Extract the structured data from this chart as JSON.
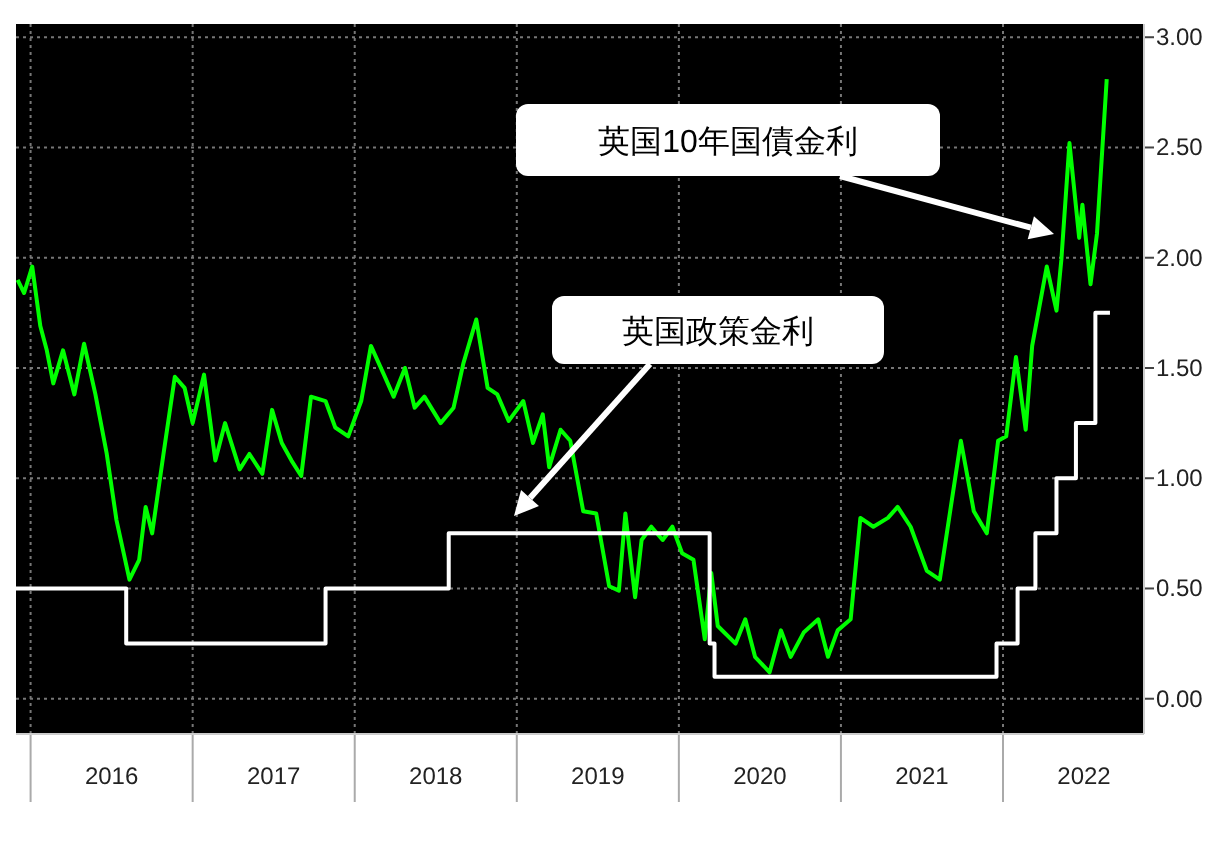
{
  "chart_data": {
    "type": "line",
    "xlim": [
      2015.91,
      2022.87
    ],
    "ylim": [
      -0.16,
      3.06
    ],
    "xticks": [
      {
        "value": 2016,
        "label": null
      },
      {
        "value": 2016.5,
        "label": "2016"
      },
      {
        "value": 2017,
        "label": null
      },
      {
        "value": 2017.5,
        "label": "2017"
      },
      {
        "value": 2018,
        "label": null
      },
      {
        "value": 2018.5,
        "label": "2018"
      },
      {
        "value": 2019,
        "label": null
      },
      {
        "value": 2019.5,
        "label": "2019"
      },
      {
        "value": 2020,
        "label": null
      },
      {
        "value": 2020.5,
        "label": "2020"
      },
      {
        "value": 2021,
        "label": null
      },
      {
        "value": 2021.5,
        "label": "2021"
      },
      {
        "value": 2022,
        "label": null
      },
      {
        "value": 2022.5,
        "label": "2022"
      }
    ],
    "yticks": [
      {
        "value": 0,
        "label": "0.00"
      },
      {
        "value": 0.5,
        "label": "0.50"
      },
      {
        "value": 1,
        "label": "1.00"
      },
      {
        "value": 1.5,
        "label": "1.50"
      },
      {
        "value": 2,
        "label": "2.00"
      },
      {
        "value": 2.5,
        "label": "2.50"
      },
      {
        "value": 3,
        "label": "3.00"
      }
    ],
    "grid": true,
    "series": [
      {
        "type": "line",
        "color": "#00ff00",
        "x": [
          2015.92,
          2015.96,
          2016.01,
          2016.06,
          2016.1,
          2016.14,
          2016.2,
          2016.27,
          2016.33,
          2016.4,
          2016.47,
          2016.53,
          2016.61,
          2016.67,
          2016.71,
          2016.75,
          2016.82,
          2016.89,
          2016.95,
          2017.0,
          2017.07,
          2017.14,
          2017.2,
          2017.29,
          2017.35,
          2017.43,
          2017.49,
          2017.55,
          2017.61,
          2017.67,
          2017.73,
          2017.82,
          2017.88,
          2017.96,
          2018.04,
          2018.1,
          2018.18,
          2018.24,
          2018.31,
          2018.37,
          2018.43,
          2018.53,
          2018.61,
          2018.67,
          2018.75,
          2018.82,
          2018.88,
          2018.95,
          2019.04,
          2019.1,
          2019.16,
          2019.2,
          2019.27,
          2019.33,
          2019.41,
          2019.49,
          2019.57,
          2019.63,
          2019.67,
          2019.73,
          2019.77,
          2019.83,
          2019.9,
          2019.96,
          2020.02,
          2020.09,
          2020.16,
          2020.2,
          2020.24,
          2020.35,
          2020.41,
          2020.47,
          2020.56,
          2020.63,
          2020.69,
          2020.77,
          2020.86,
          2020.92,
          2020.98,
          2021.06,
          2021.12,
          2021.2,
          2021.29,
          2021.35,
          2021.43,
          2021.53,
          2021.61,
          2021.74,
          2021.82,
          2021.9,
          2021.97,
          2022.02,
          2022.08,
          2022.14,
          2022.18,
          2022.27,
          2022.33,
          2022.36,
          2022.41,
          2022.47,
          2022.49,
          2022.54,
          2022.58,
          2022.64
        ],
        "values": [
          1.9,
          1.84,
          1.96,
          1.69,
          1.58,
          1.43,
          1.58,
          1.38,
          1.61,
          1.38,
          1.11,
          0.81,
          0.54,
          0.63,
          0.87,
          0.75,
          1.11,
          1.46,
          1.41,
          1.25,
          1.47,
          1.08,
          1.25,
          1.04,
          1.11,
          1.02,
          1.31,
          1.16,
          1.08,
          1.01,
          1.37,
          1.35,
          1.23,
          1.19,
          1.35,
          1.6,
          1.47,
          1.37,
          1.5,
          1.32,
          1.37,
          1.25,
          1.32,
          1.52,
          1.72,
          1.41,
          1.38,
          1.26,
          1.35,
          1.16,
          1.29,
          1.05,
          1.22,
          1.17,
          0.85,
          0.84,
          0.51,
          0.49,
          0.84,
          0.46,
          0.72,
          0.78,
          0.72,
          0.78,
          0.66,
          0.63,
          0.27,
          0.57,
          0.33,
          0.25,
          0.36,
          0.19,
          0.12,
          0.31,
          0.19,
          0.3,
          0.36,
          0.19,
          0.31,
          0.36,
          0.82,
          0.78,
          0.82,
          0.87,
          0.78,
          0.58,
          0.54,
          1.17,
          0.85,
          0.75,
          1.17,
          1.19,
          1.55,
          1.22,
          1.6,
          1.96,
          1.76,
          1.99,
          2.52,
          2.09,
          2.24,
          1.88,
          2.11,
          2.81
        ]
      },
      {
        "type": "step",
        "color": "#ffffff",
        "x": [
          2015.91,
          2016.59,
          2017.82,
          2018.58,
          2020.19,
          2020.22,
          2021.96,
          2022.09,
          2022.2,
          2022.33,
          2022.45,
          2022.57,
          2022.66
        ],
        "values": [
          0.5,
          0.25,
          0.5,
          0.75,
          0.25,
          0.1,
          0.25,
          0.5,
          0.75,
          1.0,
          1.25,
          1.75,
          1.75
        ]
      }
    ],
    "annotations": [
      "英国10年国債金利",
      "英国政策金利"
    ]
  }
}
